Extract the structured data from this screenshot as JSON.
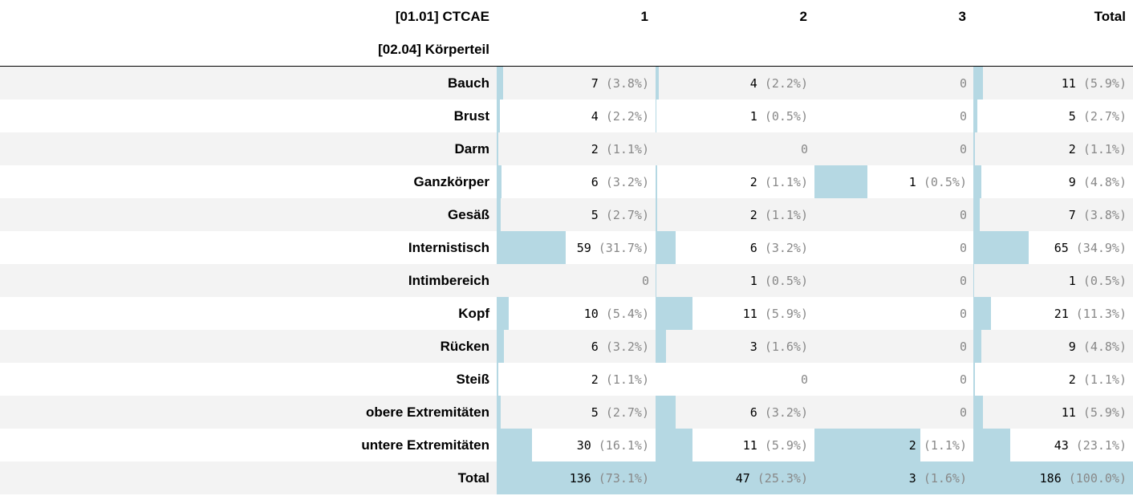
{
  "header": {
    "ctcae_label": "[01.01] CTCAE",
    "koerperteil_label": "[02.04] Körperteil",
    "columns": [
      "1",
      "2",
      "3",
      "Total"
    ]
  },
  "rows": [
    {
      "label": "Bauch",
      "cells": [
        {
          "n": "7",
          "pct": "(3.8%)",
          "frac": 0.038
        },
        {
          "n": "4",
          "pct": "(2.2%)",
          "frac": 0.022
        },
        {
          "n": "0",
          "pct": "",
          "frac": 0
        },
        {
          "n": "11",
          "pct": "(5.9%)",
          "frac": 0.059
        }
      ]
    },
    {
      "label": "Brust",
      "cells": [
        {
          "n": "4",
          "pct": "(2.2%)",
          "frac": 0.022
        },
        {
          "n": "1",
          "pct": "(0.5%)",
          "frac": 0.005
        },
        {
          "n": "0",
          "pct": "",
          "frac": 0
        },
        {
          "n": "5",
          "pct": "(2.7%)",
          "frac": 0.027
        }
      ]
    },
    {
      "label": "Darm",
      "cells": [
        {
          "n": "2",
          "pct": "(1.1%)",
          "frac": 0.011
        },
        {
          "n": "0",
          "pct": "",
          "frac": 0
        },
        {
          "n": "0",
          "pct": "",
          "frac": 0
        },
        {
          "n": "2",
          "pct": "(1.1%)",
          "frac": 0.011
        }
      ]
    },
    {
      "label": "Ganzkörper",
      "cells": [
        {
          "n": "6",
          "pct": "(3.2%)",
          "frac": 0.032
        },
        {
          "n": "2",
          "pct": "(1.1%)",
          "frac": 0.011
        },
        {
          "n": "1",
          "pct": "(0.5%)",
          "frac": 0.333
        },
        {
          "n": "9",
          "pct": "(4.8%)",
          "frac": 0.048
        }
      ]
    },
    {
      "label": "Gesäß",
      "cells": [
        {
          "n": "5",
          "pct": "(2.7%)",
          "frac": 0.027
        },
        {
          "n": "2",
          "pct": "(1.1%)",
          "frac": 0.011
        },
        {
          "n": "0",
          "pct": "",
          "frac": 0
        },
        {
          "n": "7",
          "pct": "(3.8%)",
          "frac": 0.038
        }
      ]
    },
    {
      "label": "Internistisch",
      "cells": [
        {
          "n": "59",
          "pct": "(31.7%)",
          "frac": 0.434
        },
        {
          "n": "6",
          "pct": "(3.2%)",
          "frac": 0.128
        },
        {
          "n": "0",
          "pct": "",
          "frac": 0
        },
        {
          "n": "65",
          "pct": "(34.9%)",
          "frac": 0.349
        }
      ]
    },
    {
      "label": "Intimbereich",
      "cells": [
        {
          "n": "0",
          "pct": "",
          "frac": 0
        },
        {
          "n": "1",
          "pct": "(0.5%)",
          "frac": 0.005
        },
        {
          "n": "0",
          "pct": "",
          "frac": 0
        },
        {
          "n": "1",
          "pct": "(0.5%)",
          "frac": 0.005
        }
      ]
    },
    {
      "label": "Kopf",
      "cells": [
        {
          "n": "10",
          "pct": "(5.4%)",
          "frac": 0.074
        },
        {
          "n": "11",
          "pct": "(5.9%)",
          "frac": 0.234
        },
        {
          "n": "0",
          "pct": "",
          "frac": 0
        },
        {
          "n": "21",
          "pct": "(11.3%)",
          "frac": 0.113
        }
      ]
    },
    {
      "label": "Rücken",
      "cells": [
        {
          "n": "6",
          "pct": "(3.2%)",
          "frac": 0.044
        },
        {
          "n": "3",
          "pct": "(1.6%)",
          "frac": 0.064
        },
        {
          "n": "0",
          "pct": "",
          "frac": 0
        },
        {
          "n": "9",
          "pct": "(4.8%)",
          "frac": 0.048
        }
      ]
    },
    {
      "label": "Steiß",
      "cells": [
        {
          "n": "2",
          "pct": "(1.1%)",
          "frac": 0.011
        },
        {
          "n": "0",
          "pct": "",
          "frac": 0
        },
        {
          "n": "0",
          "pct": "",
          "frac": 0
        },
        {
          "n": "2",
          "pct": "(1.1%)",
          "frac": 0.011
        }
      ]
    },
    {
      "label": "obere Extremitäten",
      "cells": [
        {
          "n": "5",
          "pct": "(2.7%)",
          "frac": 0.027
        },
        {
          "n": "6",
          "pct": "(3.2%)",
          "frac": 0.128
        },
        {
          "n": "0",
          "pct": "",
          "frac": 0
        },
        {
          "n": "11",
          "pct": "(5.9%)",
          "frac": 0.059
        }
      ]
    },
    {
      "label": "untere Extremitäten",
      "cells": [
        {
          "n": "30",
          "pct": "(16.1%)",
          "frac": 0.221
        },
        {
          "n": "11",
          "pct": "(5.9%)",
          "frac": 0.234
        },
        {
          "n": "2",
          "pct": "(1.1%)",
          "frac": 0.667
        },
        {
          "n": "43",
          "pct": "(23.1%)",
          "frac": 0.231
        }
      ]
    },
    {
      "label": "Total",
      "cells": [
        {
          "n": "136",
          "pct": "(73.1%)",
          "frac": 1
        },
        {
          "n": "47",
          "pct": "(25.3%)",
          "frac": 1
        },
        {
          "n": "3",
          "pct": "(1.6%)",
          "frac": 1
        },
        {
          "n": "186",
          "pct": "(100.0%)",
          "frac": 1
        }
      ]
    }
  ],
  "colors": {
    "bar": "#b5d8e3",
    "row_alt": "#f3f3f3",
    "muted_text": "#888888"
  }
}
